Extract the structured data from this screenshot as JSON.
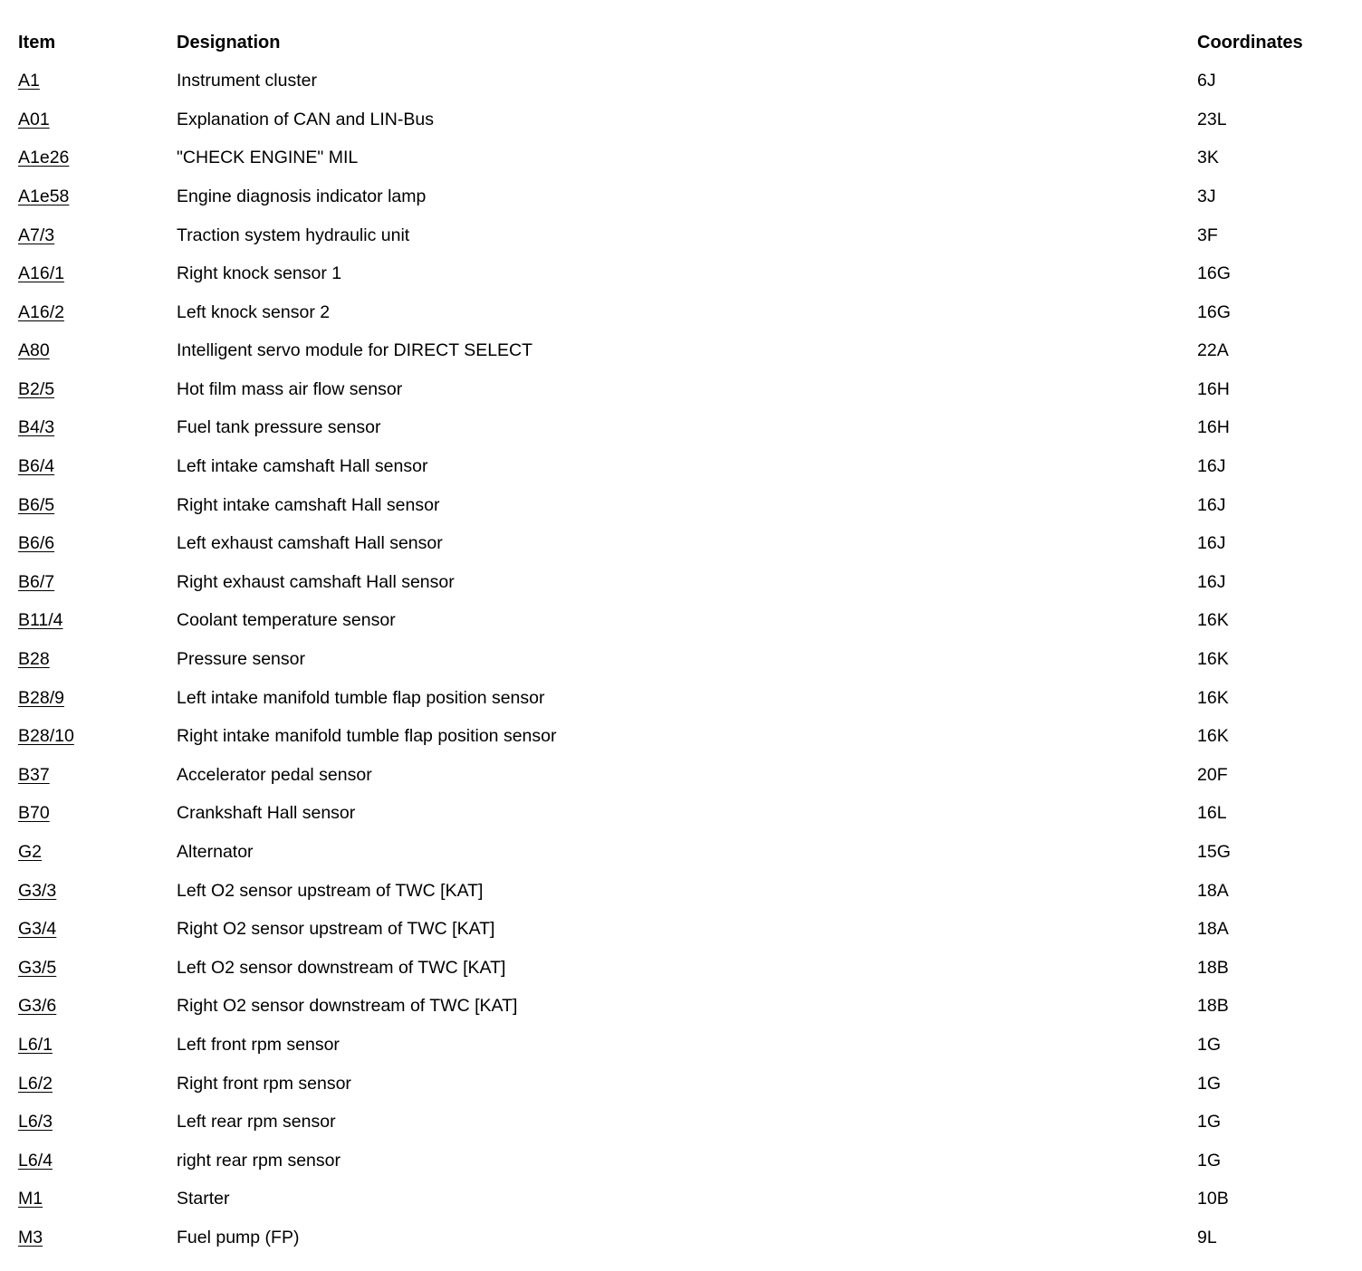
{
  "table": {
    "headers": [
      "Item",
      "Designation",
      "Coordinates"
    ],
    "rows": [
      {
        "item": "A1",
        "designation": "Instrument cluster",
        "coordinates": "6J"
      },
      {
        "item": "A01",
        "designation": "Explanation of CAN and LIN-Bus",
        "coordinates": "23L"
      },
      {
        "item": "A1e26",
        "designation": "\"CHECK ENGINE\" MIL",
        "coordinates": "3K"
      },
      {
        "item": "A1e58",
        "designation": "Engine diagnosis indicator lamp",
        "coordinates": "3J"
      },
      {
        "item": "A7/3",
        "designation": "Traction system hydraulic unit",
        "coordinates": "3F"
      },
      {
        "item": "A16/1",
        "designation": "Right knock sensor 1",
        "coordinates": "16G"
      },
      {
        "item": "A16/2",
        "designation": "Left knock sensor 2",
        "coordinates": "16G"
      },
      {
        "item": "A80",
        "designation": "Intelligent servo module for DIRECT SELECT",
        "coordinates": "22A"
      },
      {
        "item": "B2/5",
        "designation": "Hot film mass air flow sensor",
        "coordinates": "16H"
      },
      {
        "item": "B4/3",
        "designation": "Fuel tank pressure sensor",
        "coordinates": "16H"
      },
      {
        "item": "B6/4",
        "designation": "Left intake camshaft Hall sensor",
        "coordinates": "16J"
      },
      {
        "item": "B6/5",
        "designation": "Right intake camshaft Hall sensor",
        "coordinates": "16J"
      },
      {
        "item": "B6/6",
        "designation": "Left exhaust camshaft Hall sensor",
        "coordinates": "16J"
      },
      {
        "item": "B6/7",
        "designation": "Right exhaust camshaft Hall sensor",
        "coordinates": "16J"
      },
      {
        "item": "B11/4",
        "designation": "Coolant temperature sensor",
        "coordinates": "16K"
      },
      {
        "item": "B28",
        "designation": "Pressure sensor",
        "coordinates": "16K"
      },
      {
        "item": "B28/9",
        "designation": "Left intake manifold tumble flap position sensor",
        "coordinates": "16K"
      },
      {
        "item": "B28/10",
        "designation": "Right intake manifold tumble flap position sensor",
        "coordinates": "16K"
      },
      {
        "item": "B37",
        "designation": "Accelerator pedal sensor",
        "coordinates": "20F"
      },
      {
        "item": "B70",
        "designation": "Crankshaft Hall sensor",
        "coordinates": "16L"
      },
      {
        "item": "G2",
        "designation": "Alternator",
        "coordinates": "15G"
      },
      {
        "item": "G3/3",
        "designation": "Left O2 sensor upstream of TWC [KAT]",
        "coordinates": "18A"
      },
      {
        "item": "G3/4",
        "designation": "Right O2 sensor upstream of TWC [KAT]",
        "coordinates": "18A"
      },
      {
        "item": "G3/5",
        "designation": "Left O2 sensor downstream of TWC [KAT]",
        "coordinates": "18B"
      },
      {
        "item": "G3/6",
        "designation": "Right O2 sensor downstream of TWC [KAT]",
        "coordinates": "18B"
      },
      {
        "item": "L6/1",
        "designation": "Left front rpm sensor",
        "coordinates": "1G"
      },
      {
        "item": "L6/2",
        "designation": "Right front rpm sensor",
        "coordinates": "1G"
      },
      {
        "item": "L6/3",
        "designation": "Left rear rpm sensor",
        "coordinates": "1G"
      },
      {
        "item": "L6/4",
        "designation": "right rear rpm sensor",
        "coordinates": "1G"
      },
      {
        "item": "M1",
        "designation": "Starter",
        "coordinates": "10B"
      },
      {
        "item": "M3",
        "designation": "Fuel pump (FP)",
        "coordinates": "9L"
      }
    ]
  }
}
